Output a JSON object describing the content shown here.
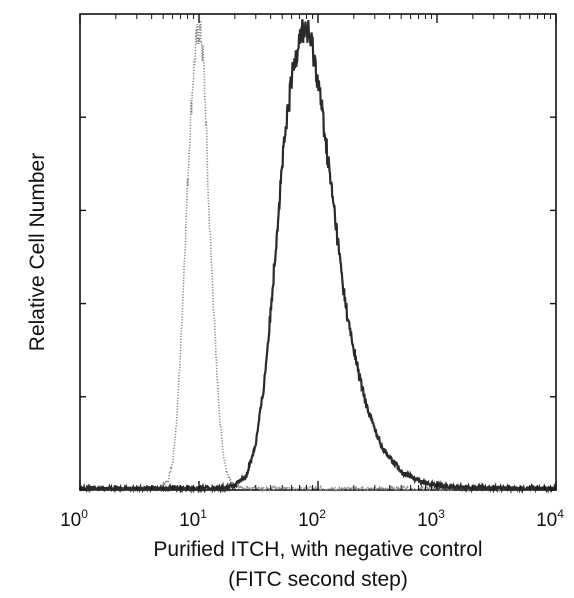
{
  "chart_data": {
    "type": "line",
    "x_scale": "log",
    "xlim": [
      1,
      10000
    ],
    "ylim": [
      0,
      100
    ],
    "xlabel_line1": "Purified ITCH, with negative control",
    "xlabel_line2": "(FITC second step)",
    "ylabel": "Relative Cell Number",
    "x_ticks": [
      {
        "base": "10",
        "exp": "0",
        "value": 1
      },
      {
        "base": "10",
        "exp": "1",
        "value": 10
      },
      {
        "base": "10",
        "exp": "2",
        "value": 100
      },
      {
        "base": "10",
        "exp": "3",
        "value": 1000
      },
      {
        "base": "10",
        "exp": "4",
        "value": 10000
      }
    ],
    "y_ticks": [
      0,
      20,
      40,
      60,
      80
    ],
    "grid": false,
    "legend": "none",
    "series": [
      {
        "style": "dotted-light",
        "color": "#8a8a8a",
        "points": [
          [
            1,
            0.2
          ],
          [
            3,
            0.2
          ],
          [
            4.8,
            0.4
          ],
          [
            5.5,
            2
          ],
          [
            6,
            6
          ],
          [
            6.5,
            15
          ],
          [
            7,
            30
          ],
          [
            7.5,
            48
          ],
          [
            8,
            65
          ],
          [
            8.5,
            80
          ],
          [
            9,
            90
          ],
          [
            9.5,
            96
          ],
          [
            10,
            99
          ],
          [
            10.5,
            97
          ],
          [
            11,
            90
          ],
          [
            11.5,
            78
          ],
          [
            12,
            62
          ],
          [
            13,
            44
          ],
          [
            14,
            27
          ],
          [
            15,
            15
          ],
          [
            16,
            8
          ],
          [
            17,
            4
          ],
          [
            19,
            1.5
          ],
          [
            22,
            0.6
          ],
          [
            40,
            0.3
          ],
          [
            10000,
            0.2
          ]
        ]
      },
      {
        "style": "solid-dark",
        "color": "#2a2a2a",
        "points": [
          [
            1,
            0.3
          ],
          [
            15,
            0.4
          ],
          [
            20,
            1
          ],
          [
            25,
            3
          ],
          [
            30,
            10
          ],
          [
            35,
            22
          ],
          [
            40,
            38
          ],
          [
            45,
            55
          ],
          [
            50,
            70
          ],
          [
            60,
            88
          ],
          [
            70,
            98
          ],
          [
            80,
            99
          ],
          [
            90,
            95
          ],
          [
            100,
            88
          ],
          [
            110,
            80
          ],
          [
            125,
            68
          ],
          [
            140,
            58
          ],
          [
            160,
            45
          ],
          [
            180,
            36
          ],
          [
            200,
            30
          ],
          [
            225,
            24
          ],
          [
            250,
            19
          ],
          [
            300,
            13
          ],
          [
            350,
            9
          ],
          [
            400,
            7
          ],
          [
            500,
            4
          ],
          [
            600,
            3
          ],
          [
            700,
            2
          ],
          [
            800,
            1.5
          ],
          [
            1000,
            1
          ],
          [
            1500,
            0.6
          ],
          [
            3000,
            0.4
          ],
          [
            10000,
            0.3
          ]
        ]
      }
    ]
  }
}
